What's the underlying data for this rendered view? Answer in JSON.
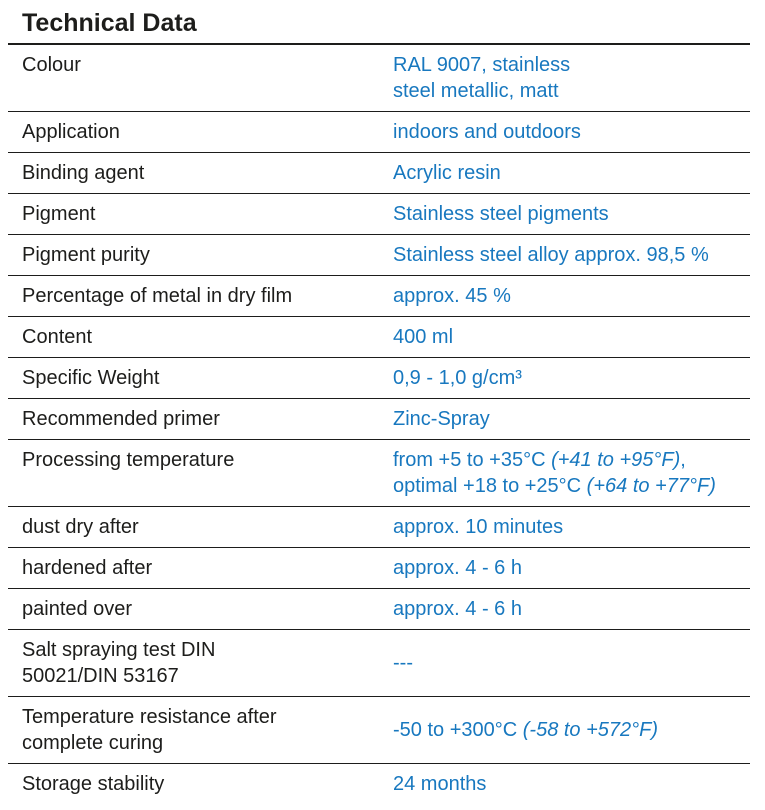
{
  "title": "Technical Data",
  "colors": {
    "accent_blue": "#1878bf",
    "text_dark": "#1d1d1b",
    "rule": "#1d1d1b"
  },
  "table": {
    "rows": [
      {
        "label_lines": [
          "Colour"
        ],
        "value_lines": [
          [
            {
              "t": "RAL 9007, stainless"
            }
          ],
          [
            {
              "t": "steel metallic, matt"
            }
          ]
        ]
      },
      {
        "label_lines": [
          "Application"
        ],
        "value_lines": [
          [
            {
              "t": "indoors and outdoors"
            }
          ]
        ]
      },
      {
        "label_lines": [
          "Binding agent"
        ],
        "value_lines": [
          [
            {
              "t": "Acrylic resin"
            }
          ]
        ]
      },
      {
        "label_lines": [
          "Pigment"
        ],
        "value_lines": [
          [
            {
              "t": "Stainless steel pigments"
            }
          ]
        ]
      },
      {
        "label_lines": [
          "Pigment purity"
        ],
        "value_lines": [
          [
            {
              "t": "Stainless steel alloy approx. 98,5 %"
            }
          ]
        ]
      },
      {
        "label_lines": [
          "Percentage of metal in dry film"
        ],
        "value_lines": [
          [
            {
              "t": "approx. 45 %"
            }
          ]
        ]
      },
      {
        "label_lines": [
          "Content"
        ],
        "value_lines": [
          [
            {
              "t": "400 ml"
            }
          ]
        ]
      },
      {
        "label_lines": [
          "Specific Weight"
        ],
        "value_lines": [
          [
            {
              "t": "0,9 - 1,0 g/cm³"
            }
          ]
        ]
      },
      {
        "label_lines": [
          "Recommended primer"
        ],
        "value_lines": [
          [
            {
              "t": "Zinc-Spray"
            }
          ]
        ]
      },
      {
        "label_lines": [
          "Processing temperature"
        ],
        "value_lines": [
          [
            {
              "t": "from +5 to +35°C "
            },
            {
              "t": "(+41 to +95°F)",
              "i": true
            },
            {
              "t": ","
            }
          ],
          [
            {
              "t": "optimal +18 to +25°C "
            },
            {
              "t": "(+64 to +77°F)",
              "i": true
            }
          ]
        ]
      },
      {
        "label_lines": [
          "dust dry after"
        ],
        "value_lines": [
          [
            {
              "t": "approx. 10 minutes"
            }
          ]
        ]
      },
      {
        "label_lines": [
          "hardened after"
        ],
        "value_lines": [
          [
            {
              "t": "approx. 4 - 6 h"
            }
          ]
        ]
      },
      {
        "label_lines": [
          "painted over"
        ],
        "value_lines": [
          [
            {
              "t": "approx. 4 - 6 h"
            }
          ]
        ]
      },
      {
        "label_lines": [
          "Salt spraying test DIN",
          "50021/DIN 53167"
        ],
        "value_lines": [
          [
            {
              "t": "---"
            }
          ]
        ]
      },
      {
        "label_lines": [
          "Temperature resistance after",
          "complete curing"
        ],
        "value_lines": [
          [
            {
              "t": "-50 to +300°C "
            },
            {
              "t": "(-58 to +572°F)",
              "i": true
            }
          ]
        ]
      },
      {
        "label_lines": [
          "Storage stability"
        ],
        "value_lines": [
          [
            {
              "t": "24 months"
            }
          ]
        ]
      }
    ]
  }
}
